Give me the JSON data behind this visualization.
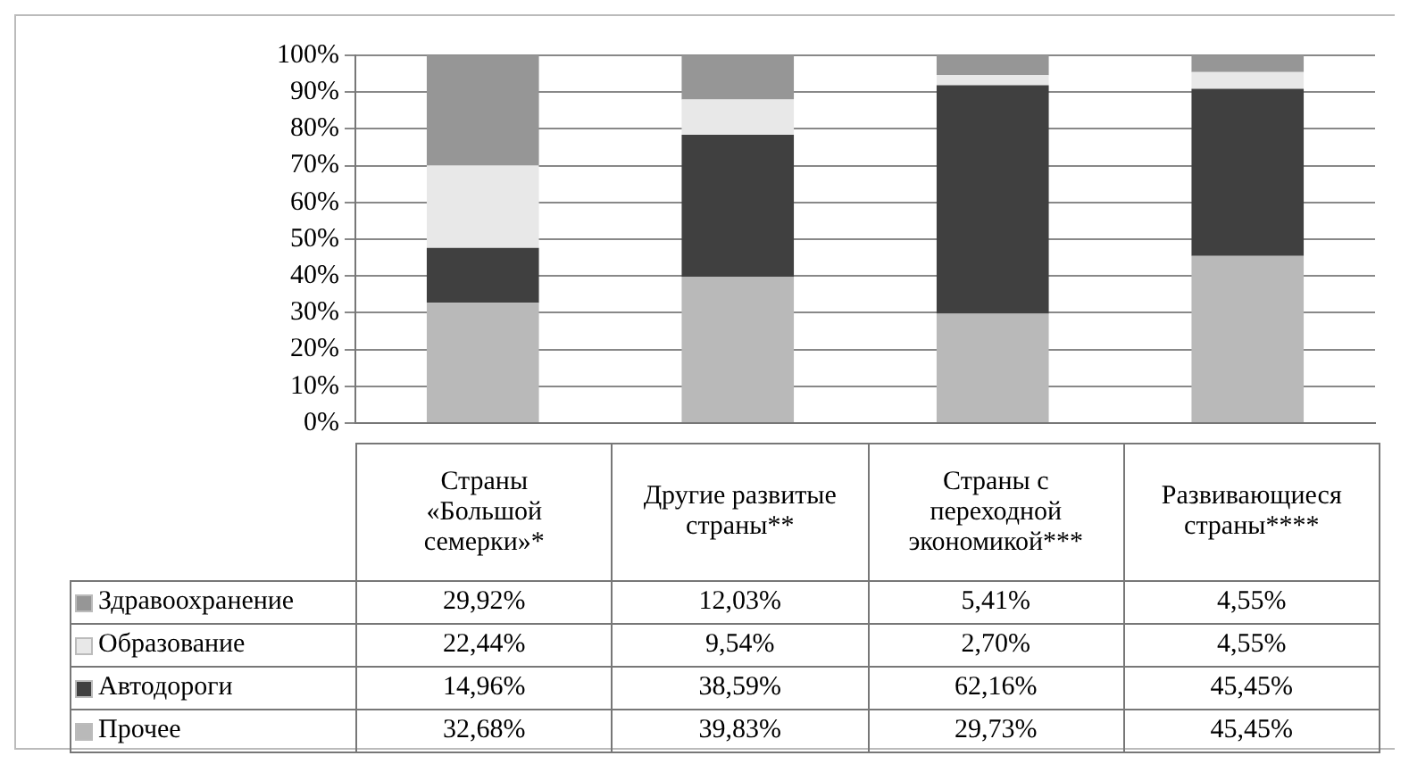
{
  "chart_data": {
    "type": "bar",
    "stacked": true,
    "categories": [
      "Страны «Большой семерки»*",
      "Другие развитые страны**",
      "Страны с переходной экономикой***",
      "Развивающиеся страны****"
    ],
    "series": [
      {
        "name": "Прочее",
        "color": "#b9b9b9",
        "values": [
          32.68,
          39.83,
          29.73,
          45.45
        ],
        "value_labels": [
          "32,68%",
          "39,83%",
          "29,73%",
          "45,45%"
        ]
      },
      {
        "name": "Автодороги",
        "color": "#404040",
        "values": [
          14.96,
          38.59,
          62.16,
          45.45
        ],
        "value_labels": [
          "14,96%",
          "38,59%",
          "62,16%",
          "45,45%"
        ]
      },
      {
        "name": "Образование",
        "color": "#e8e8e8",
        "values": [
          22.44,
          9.54,
          2.7,
          4.55
        ],
        "value_labels": [
          "22,44%",
          "9,54%",
          "2,70%",
          "4,55%"
        ]
      },
      {
        "name": "Здравоохранение",
        "color": "#969696",
        "values": [
          29.92,
          12.03,
          5.41,
          4.55
        ],
        "value_labels": [
          "29,92%",
          "12,03%",
          "5,41%",
          "4,55%"
        ]
      }
    ],
    "ylim": [
      0,
      100
    ],
    "yticks": [
      {
        "value": 0,
        "label": "0%"
      },
      {
        "value": 10,
        "label": "10%"
      },
      {
        "value": 20,
        "label": "20%"
      },
      {
        "value": 30,
        "label": "30%"
      },
      {
        "value": 40,
        "label": "40%"
      },
      {
        "value": 50,
        "label": "50%"
      },
      {
        "value": 60,
        "label": "60%"
      },
      {
        "value": 70,
        "label": "70%"
      },
      {
        "value": 80,
        "label": "80%"
      },
      {
        "value": 90,
        "label": "90%"
      },
      {
        "value": 100,
        "label": "100%"
      }
    ],
    "grid": "y",
    "legend": "bottom left"
  }
}
